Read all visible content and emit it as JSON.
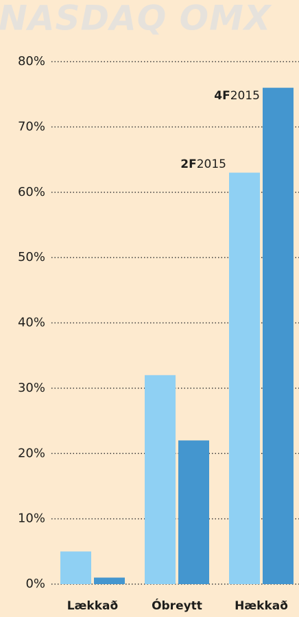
{
  "header": {
    "brand": "NASDAQ OMX"
  },
  "chart_data": {
    "type": "bar",
    "categories": [
      "Lækkað",
      "Óbreytt",
      "Hækkað"
    ],
    "series": [
      {
        "name": "2F2015",
        "color": "#8fd0f3",
        "values": [
          5,
          32,
          63
        ]
      },
      {
        "name": "4F2015",
        "color": "#4496cf",
        "values": [
          1,
          22,
          76
        ]
      }
    ],
    "ylim": [
      0,
      80
    ],
    "yticks": [
      {
        "value": 0,
        "label": "0%"
      },
      {
        "value": 10,
        "label": "10%"
      },
      {
        "value": 20,
        "label": "20%"
      },
      {
        "value": 30,
        "label": "30%"
      },
      {
        "value": 40,
        "label": "40%"
      },
      {
        "value": 50,
        "label": "50%"
      },
      {
        "value": 60,
        "label": "60%"
      },
      {
        "value": 70,
        "label": "70%"
      },
      {
        "value": 80,
        "label": "80%"
      }
    ],
    "grid": true
  }
}
